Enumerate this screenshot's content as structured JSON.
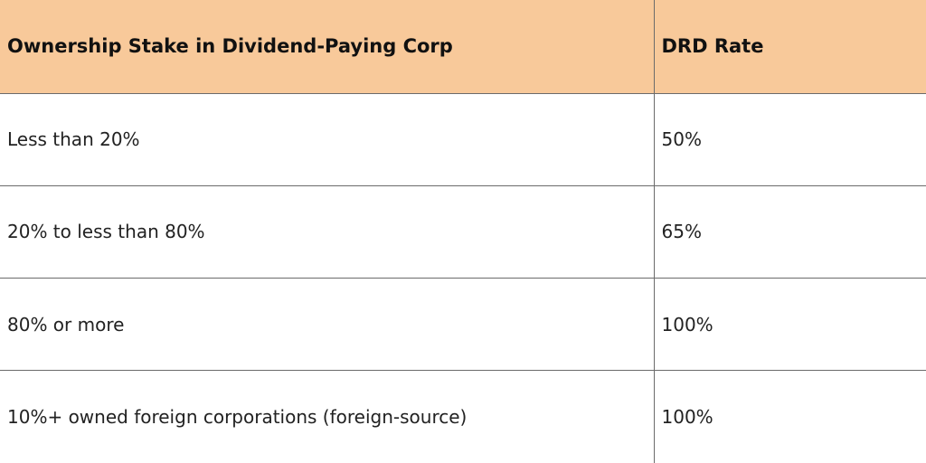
{
  "colors": {
    "header_background": "#f8c99a",
    "row_background": "#ffffff",
    "border": "#6b6b6b",
    "text": "#1a1a1a"
  },
  "table": {
    "headers": [
      "Ownership Stake in Dividend-Paying Corp",
      "DRD Rate"
    ],
    "rows": [
      [
        "Less than 20%",
        "50%"
      ],
      [
        "20% to less than 80%",
        "65%"
      ],
      [
        "80% or more",
        "100%"
      ],
      [
        "10%+ owned foreign corporations (foreign-source)",
        "100%"
      ]
    ]
  }
}
